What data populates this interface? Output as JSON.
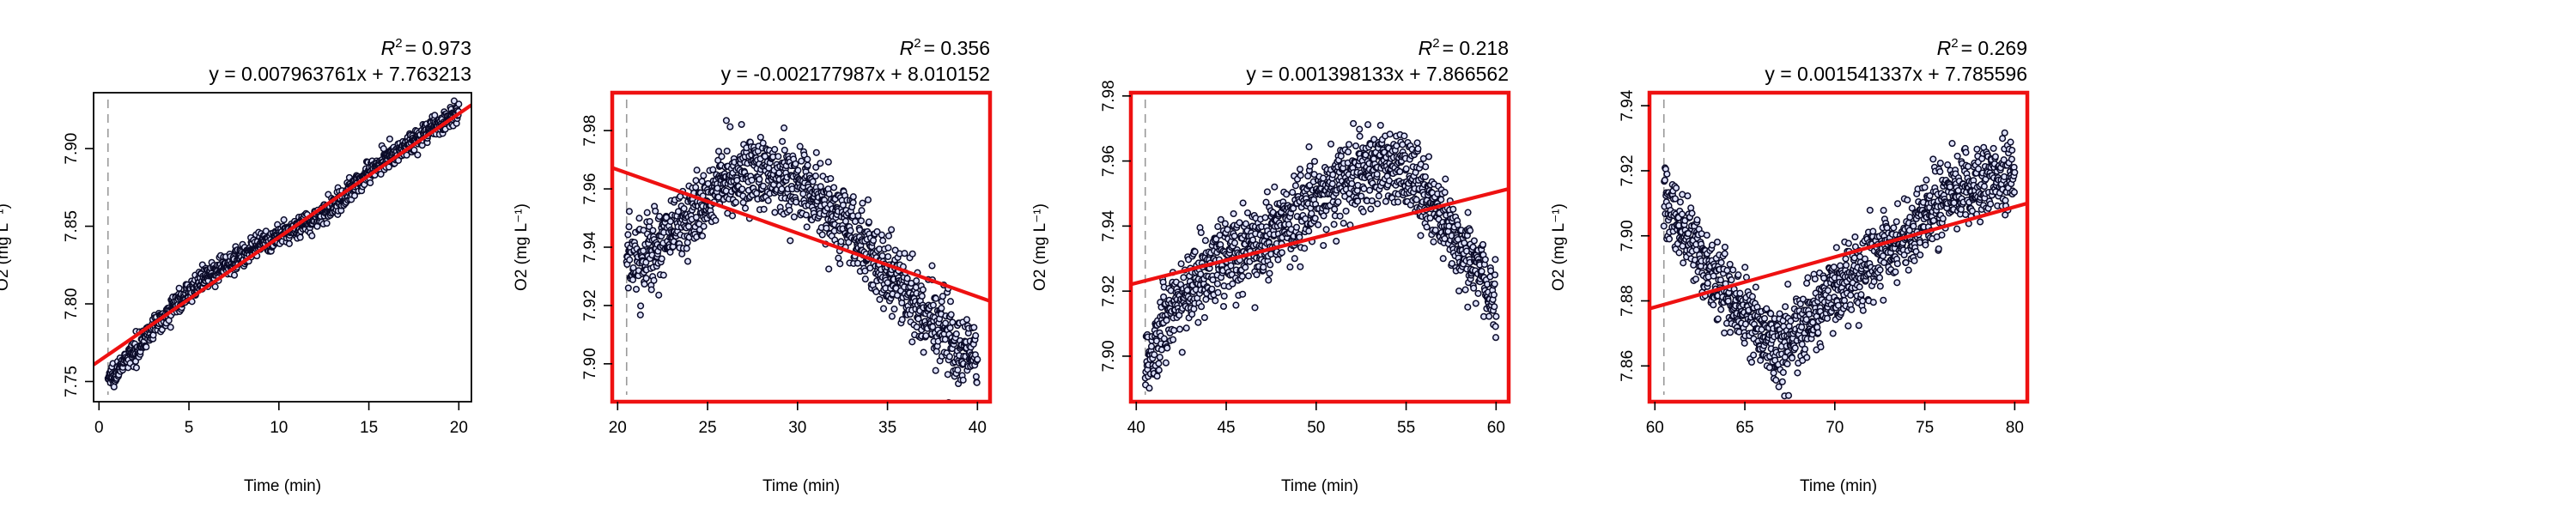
{
  "chart_data": [
    {
      "type": "scatter",
      "xlabel": "Time (min)",
      "ylabel": "O2 (mg L⁻¹)",
      "r2_label": "R",
      "r2_sup": "2",
      "r2_value": "= 0.973",
      "equation": "y = 0.007963761x + 7.763213",
      "slope": 0.007963761,
      "intercept": 7.763213,
      "xlim": [
        -0.3,
        20.7
      ],
      "ylim": [
        7.737,
        7.936
      ],
      "xticks": [
        0,
        5,
        10,
        15,
        20
      ],
      "yticks": [
        7.75,
        7.8,
        7.85,
        7.9
      ],
      "ytick_labels": [
        "7.75",
        "7.80",
        "7.85",
        "7.90"
      ],
      "dashed_x": 0.5,
      "highlight_border": false,
      "trend_x": [
        0.5,
        1,
        2,
        3,
        4,
        5,
        6,
        7,
        8,
        9,
        10,
        11,
        12,
        13,
        14,
        15,
        16,
        17,
        18,
        19,
        20
      ],
      "trend_y": [
        7.752,
        7.757,
        7.77,
        7.784,
        7.797,
        7.808,
        7.817,
        7.825,
        7.831,
        7.838,
        7.843,
        7.849,
        7.855,
        7.862,
        7.873,
        7.885,
        7.894,
        7.901,
        7.909,
        7.916,
        7.922
      ],
      "noise": 0.0035
    },
    {
      "type": "scatter",
      "xlabel": "Time (min)",
      "ylabel": "O2 (mg L⁻¹)",
      "r2_label": "R",
      "r2_sup": "2",
      "r2_value": "= 0.356",
      "equation": "y = -0.002177987x + 8.010152",
      "slope": -0.002177987,
      "intercept": 8.010152,
      "xlim": [
        19.7,
        40.7
      ],
      "ylim": [
        7.887,
        7.993
      ],
      "xticks": [
        20,
        25,
        30,
        35,
        40
      ],
      "yticks": [
        7.9,
        7.92,
        7.94,
        7.96,
        7.98
      ],
      "ytick_labels": [
        "7.90",
        "7.92",
        "7.94",
        "7.96",
        "7.98"
      ],
      "dashed_x": 20.5,
      "highlight_border": true,
      "trend_x": [
        20.5,
        21,
        22,
        23,
        24,
        25,
        26,
        27,
        28,
        29,
        30,
        31,
        32,
        33,
        34,
        35,
        36,
        37,
        38,
        39,
        40
      ],
      "trend_y": [
        7.936,
        7.935,
        7.94,
        7.945,
        7.95,
        7.955,
        7.966,
        7.966,
        7.965,
        7.964,
        7.962,
        7.956,
        7.952,
        7.946,
        7.938,
        7.931,
        7.925,
        7.919,
        7.91,
        7.905,
        7.902
      ],
      "noise": 0.0065
    },
    {
      "type": "scatter",
      "xlabel": "Time (min)",
      "ylabel": "O2 (mg L⁻¹)",
      "r2_label": "R",
      "r2_sup": "2",
      "r2_value": "= 0.218",
      "equation": "y = 0.001398133x + 7.866562",
      "slope": 0.001398133,
      "intercept": 7.866562,
      "xlim": [
        39.7,
        60.7
      ],
      "ylim": [
        7.886,
        7.981
      ],
      "xticks": [
        40,
        45,
        50,
        55,
        60
      ],
      "yticks": [
        7.9,
        7.92,
        7.94,
        7.96,
        7.98
      ],
      "ytick_labels": [
        "7.90",
        "7.92",
        "7.94",
        "7.96",
        "7.98"
      ],
      "dashed_x": 40.5,
      "highlight_border": true,
      "trend_x": [
        40.5,
        41,
        42,
        43,
        44,
        45,
        46,
        47,
        48,
        49,
        50,
        51,
        52,
        53,
        54,
        55,
        56,
        57,
        58,
        59,
        60
      ],
      "trend_y": [
        7.897,
        7.904,
        7.915,
        7.921,
        7.926,
        7.931,
        7.933,
        7.936,
        7.94,
        7.944,
        7.948,
        7.952,
        7.956,
        7.959,
        7.958,
        7.955,
        7.95,
        7.942,
        7.935,
        7.928,
        7.918
      ],
      "noise": 0.006
    },
    {
      "type": "scatter",
      "xlabel": "Time (min)",
      "ylabel": "O2 (mg L⁻¹)",
      "r2_label": "R",
      "r2_sup": "2",
      "r2_value": "= 0.269",
      "equation": "y = 0.001541337x + 7.785596",
      "slope": 0.001541337,
      "intercept": 7.785596,
      "xlim": [
        59.7,
        80.7
      ],
      "ylim": [
        7.849,
        7.944
      ],
      "xticks": [
        60,
        65,
        70,
        75,
        80
      ],
      "yticks": [
        7.86,
        7.88,
        7.9,
        7.92,
        7.94
      ],
      "ytick_labels": [
        "7.86",
        "7.88",
        "7.90",
        "7.92",
        "7.94"
      ],
      "dashed_x": 60.5,
      "highlight_border": true,
      "trend_x": [
        60.5,
        61,
        62,
        63,
        64,
        65,
        66,
        67,
        68,
        69,
        70,
        71,
        72,
        73,
        74,
        75,
        76,
        77,
        78,
        79,
        80
      ],
      "trend_y": [
        7.912,
        7.905,
        7.898,
        7.89,
        7.881,
        7.877,
        7.87,
        7.864,
        7.872,
        7.878,
        7.883,
        7.887,
        7.891,
        7.894,
        7.9,
        7.906,
        7.912,
        7.914,
        7.915,
        7.917,
        7.92
      ],
      "noise": 0.0055
    }
  ]
}
